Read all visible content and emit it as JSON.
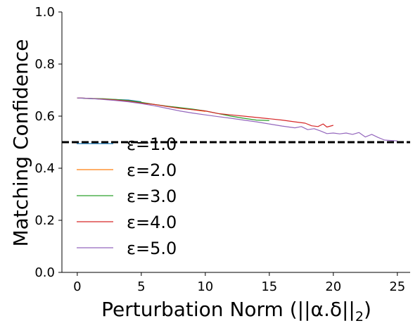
{
  "chart_data": {
    "type": "line",
    "xlabel": "Perturbation Norm (||α.δ||",
    "xlabel_sub": "2",
    "xlabel_close": ")",
    "ylabel": "Matching Confidence",
    "xlim": [
      -1.2,
      26
    ],
    "ylim": [
      0.0,
      1.0
    ],
    "xticks": [
      0,
      5,
      10,
      15,
      20,
      25
    ],
    "yticks": [
      0.0,
      0.2,
      0.4,
      0.6,
      0.8,
      1.0
    ],
    "xtick_labels": [
      "0",
      "5",
      "10",
      "15",
      "20",
      "25"
    ],
    "ytick_labels": [
      "0.0",
      "0.2",
      "0.4",
      "0.6",
      "0.8",
      "1.0"
    ],
    "threshold": {
      "y": 0.5,
      "style": "dashed",
      "color": "#000000"
    },
    "legend": {
      "placement": "lower-left"
    },
    "series": [
      {
        "name": "ε=1.0",
        "color": "#1f77b4",
        "x": [
          0,
          1,
          2,
          3,
          4,
          5
        ],
        "y": [
          0.67,
          0.667,
          0.665,
          0.664,
          0.662,
          0.655
        ]
      },
      {
        "name": "ε=2.0",
        "color": "#ff7f0e",
        "x": [
          0,
          1,
          2,
          3,
          4,
          5,
          6,
          7,
          8,
          9,
          10
        ],
        "y": [
          0.67,
          0.668,
          0.665,
          0.662,
          0.658,
          0.652,
          0.645,
          0.638,
          0.632,
          0.625,
          0.618
        ]
      },
      {
        "name": "ε=3.0",
        "color": "#2ca02c",
        "x": [
          0,
          1,
          2,
          3,
          4,
          5,
          6,
          7,
          8,
          9,
          10,
          11,
          12,
          13,
          14,
          15
        ],
        "y": [
          0.67,
          0.668,
          0.667,
          0.664,
          0.66,
          0.653,
          0.645,
          0.638,
          0.633,
          0.627,
          0.62,
          0.61,
          0.6,
          0.592,
          0.585,
          0.583
        ]
      },
      {
        "name": "ε=4.0",
        "color": "#d62728",
        "x": [
          0,
          1,
          2,
          3,
          4,
          5,
          6,
          7,
          8,
          9,
          10,
          11,
          12,
          13,
          14,
          15,
          16,
          17,
          17.8,
          18.3,
          18.8,
          19.2,
          19.5,
          20
        ],
        "y": [
          0.67,
          0.668,
          0.665,
          0.662,
          0.657,
          0.65,
          0.645,
          0.637,
          0.63,
          0.625,
          0.62,
          0.61,
          0.605,
          0.6,
          0.595,
          0.59,
          0.585,
          0.578,
          0.573,
          0.563,
          0.56,
          0.57,
          0.558,
          0.565
        ]
      },
      {
        "name": "ε=5.0",
        "color": "#9467bd",
        "x": [
          0,
          1,
          2,
          3,
          4,
          5,
          6,
          7,
          8,
          9,
          10,
          11,
          12,
          13,
          14,
          15,
          16,
          17,
          17.5,
          18,
          18.5,
          19,
          19.5,
          20,
          20.5,
          21,
          21.5,
          22,
          22.5,
          23,
          23.5,
          24,
          25
        ],
        "y": [
          0.67,
          0.668,
          0.664,
          0.66,
          0.655,
          0.648,
          0.64,
          0.63,
          0.62,
          0.612,
          0.605,
          0.598,
          0.592,
          0.585,
          0.578,
          0.57,
          0.562,
          0.555,
          0.56,
          0.548,
          0.552,
          0.543,
          0.533,
          0.535,
          0.532,
          0.535,
          0.53,
          0.537,
          0.52,
          0.53,
          0.518,
          0.508,
          0.505
        ]
      }
    ]
  }
}
